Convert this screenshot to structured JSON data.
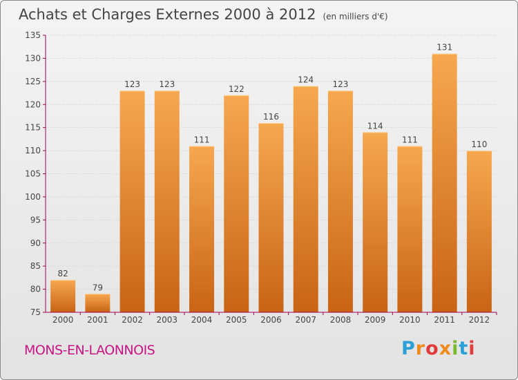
{
  "title": "Achats et Charges Externes 2000 à 2012",
  "unit": "(en milliers d'€)",
  "commune": "MONS-EN-LAONNOIS",
  "logo": {
    "text": "Proxiti",
    "colors": [
      "#2a9fd8",
      "#f08a1c",
      "#e23b3b",
      "#f08a1c",
      "#7ab82c",
      "#2a9fd8",
      "#e23b3b"
    ]
  },
  "colors": {
    "bar_top": "#f6a84f",
    "bar_bottom": "#c96414",
    "axis": "#a00050",
    "grid": "#cccccc",
    "text": "#444444"
  },
  "chart_data": {
    "type": "bar",
    "categories": [
      "2000",
      "2001",
      "2002",
      "2003",
      "2004",
      "2005",
      "2006",
      "2007",
      "2008",
      "2009",
      "2010",
      "2011",
      "2012"
    ],
    "values": [
      82,
      79,
      123,
      123,
      111,
      122,
      116,
      124,
      123,
      114,
      111,
      131,
      110
    ],
    "data_labels": [
      "82",
      "79",
      "123",
      "123",
      "111",
      "122",
      "116",
      "124",
      "123",
      "114",
      "111",
      "131",
      "110"
    ],
    "title": "Achats et Charges Externes 2000 à 2012",
    "xlabel": "",
    "ylabel": "",
    "ylim": [
      75,
      135
    ],
    "yticks": [
      75,
      80,
      85,
      90,
      95,
      100,
      105,
      110,
      115,
      120,
      125,
      130,
      135
    ],
    "grid": true
  }
}
